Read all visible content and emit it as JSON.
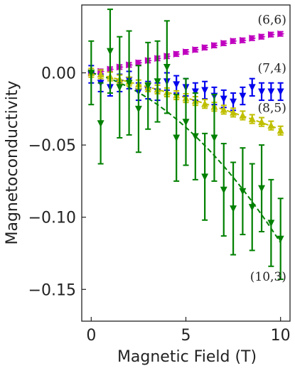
{
  "chart_data": {
    "type": "scatter",
    "xlabel": "Magnetic Field (T)",
    "ylabel": "Magnetoconductivity",
    "xlim": [
      -0.5,
      10.5
    ],
    "ylim": [
      -0.172,
      0.047
    ],
    "x_ticks": [
      {
        "value": 0,
        "label": "0"
      },
      {
        "value": 5,
        "label": "5"
      },
      {
        "value": 10,
        "label": "10"
      }
    ],
    "y_ticks": [
      {
        "value": 0.0,
        "label": "0.00"
      },
      {
        "value": -0.05,
        "label": "−0.05"
      },
      {
        "value": -0.1,
        "label": "−0.10"
      },
      {
        "value": -0.15,
        "label": "−0.15"
      }
    ],
    "grid": false,
    "annotations": [
      {
        "text": "(6,6)",
        "x": 9.55,
        "y": 0.034,
        "color": "#333333"
      },
      {
        "text": "(7,4)",
        "x": 9.55,
        "y": 0.0005,
        "color": "#333333"
      },
      {
        "text": "(8,5)",
        "x": 9.55,
        "y": -0.027,
        "color": "#333333"
      },
      {
        "text": "(10,3)",
        "x": 9.35,
        "y": -0.144,
        "color": "#333333"
      }
    ],
    "series": [
      {
        "color": "#bf00bf",
        "marker": "triangle-right",
        "x": [
          0,
          0.5,
          1,
          1.5,
          2,
          2.5,
          3,
          3.5,
          4,
          4.5,
          5,
          5.5,
          6,
          6.5,
          7,
          7.5,
          8,
          8.5,
          9,
          9.5,
          10
        ],
        "y": [
          0.0,
          0.001,
          0.0025,
          0.004,
          0.0055,
          0.007,
          0.0085,
          0.01,
          0.0115,
          0.013,
          0.0145,
          0.016,
          0.0175,
          0.019,
          0.0205,
          0.022,
          0.0225,
          0.024,
          0.025,
          0.0265,
          0.027
        ],
        "err": [
          0.0015,
          0.0015,
          0.0015,
          0.0015,
          0.0015,
          0.0015,
          0.0015,
          0.0015,
          0.0015,
          0.0015,
          0.0015,
          0.0015,
          0.0015,
          0.0015,
          0.0015,
          0.0015,
          0.0015,
          0.0015,
          0.0015,
          0.0015,
          0.0015
        ],
        "fit": false
      },
      {
        "color": "#0000ee",
        "marker": "triangle-down",
        "x": [
          0,
          0.5,
          1,
          1.5,
          2,
          2.5,
          3,
          3.5,
          4,
          4.5,
          5,
          5.5,
          6,
          6.5,
          7,
          7.5,
          8,
          8.5,
          9,
          9.5,
          10
        ],
        "y": [
          -0.001,
          -0.007,
          -0.01,
          -0.007,
          -0.005,
          -0.013,
          -0.012,
          -0.013,
          -0.006,
          -0.008,
          -0.01,
          -0.013,
          -0.012,
          -0.016,
          -0.018,
          -0.02,
          -0.016,
          -0.01,
          -0.013,
          -0.013,
          -0.013
        ],
        "err": [
          0.006,
          0.006,
          0.006,
          0.006,
          0.006,
          0.006,
          0.006,
          0.006,
          0.006,
          0.006,
          0.006,
          0.006,
          0.006,
          0.006,
          0.006,
          0.006,
          0.006,
          0.006,
          0.006,
          0.006,
          0.006
        ],
        "fit": false
      },
      {
        "color": "#bfbf00",
        "marker": "triangle-up",
        "x": [
          0,
          0.5,
          1,
          1.5,
          2,
          2.5,
          3,
          3.5,
          4,
          4.5,
          5,
          5.5,
          6,
          6.5,
          7,
          7.5,
          8,
          8.5,
          9,
          9.5,
          10
        ],
        "y": [
          0.0,
          -0.001,
          -0.0025,
          -0.0045,
          -0.006,
          -0.008,
          -0.01,
          -0.0115,
          -0.0135,
          -0.0155,
          -0.0175,
          -0.0195,
          -0.0215,
          -0.0235,
          -0.0255,
          -0.0275,
          -0.0295,
          -0.032,
          -0.034,
          -0.0365,
          -0.04
        ],
        "err": [
          0.003,
          0.003,
          0.003,
          0.003,
          0.003,
          0.003,
          0.003,
          0.003,
          0.003,
          0.003,
          0.003,
          0.003,
          0.003,
          0.003,
          0.003,
          0.003,
          0.003,
          0.003,
          0.003,
          0.003,
          0.003
        ],
        "fit": true
      },
      {
        "color": "#008000",
        "marker": "triangle-down",
        "x": [
          0,
          0.5,
          1,
          1.5,
          2,
          2.5,
          3,
          3.5,
          4,
          4.5,
          5,
          5.5,
          6,
          6.5,
          7,
          7.5,
          8,
          8.5,
          9,
          9.5,
          10
        ],
        "y": [
          0.0,
          -0.035,
          0.015,
          -0.01,
          -0.007,
          -0.025,
          -0.009,
          -0.006,
          0.004,
          -0.045,
          -0.034,
          -0.044,
          -0.072,
          -0.045,
          -0.081,
          -0.094,
          -0.082,
          -0.093,
          -0.08,
          -0.104,
          -0.115
        ],
        "err": [
          0.022,
          0.028,
          0.029,
          0.035,
          0.036,
          0.03,
          0.03,
          0.028,
          0.032,
          0.03,
          0.03,
          0.03,
          0.03,
          0.03,
          0.032,
          0.032,
          0.03,
          0.03,
          0.03,
          0.03,
          0.028
        ],
        "fit": true
      }
    ]
  }
}
